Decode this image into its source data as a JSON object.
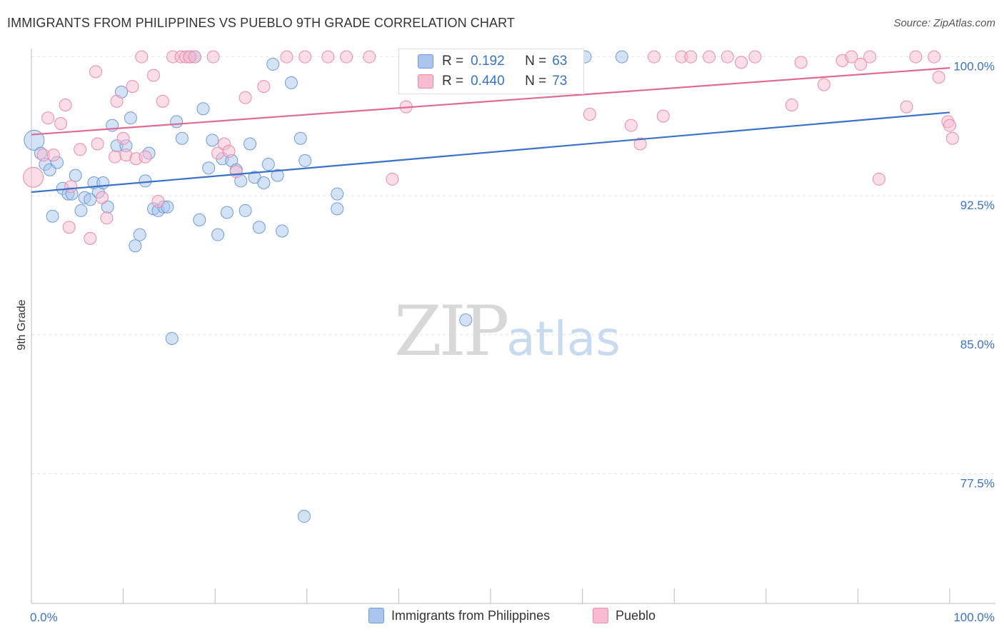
{
  "chart_data": {
    "type": "scatter",
    "title": "IMMIGRANTS FROM PHILIPPINES VS PUEBLO 9TH GRADE CORRELATION CHART",
    "source": "Source: ZipAtlas.com",
    "ylabel": "9th Grade",
    "xlabel": "",
    "xlim": [
      0,
      100
    ],
    "ylim": [
      70.5,
      100.6
    ],
    "x_tick_labels": [
      "0.0%",
      "100.0%"
    ],
    "y_ticks": [
      77.5,
      85.0,
      92.5,
      100.0
    ],
    "y_tick_labels": [
      "77.5%",
      "85.0%",
      "92.5%",
      "100.0%"
    ],
    "watermark": {
      "zip": "ZIP",
      "atlas": "atlas"
    },
    "legend_top": [
      {
        "r_label": "R =",
        "r_value": "0.192",
        "n_label": "N =",
        "n_value": "63"
      },
      {
        "r_label": "R =",
        "r_value": "0.440",
        "n_label": "N =",
        "n_value": "73"
      }
    ],
    "series": [
      {
        "name": "Immigrants from Philippines",
        "color": "#6f9bd9",
        "fill": "#aac6ee",
        "line_color": "#3a72c9",
        "trend": [
          [
            0,
            92.7
          ],
          [
            100,
            97.0
          ]
        ],
        "points": [
          [
            0.3,
            95.5
          ],
          [
            1,
            94.8
          ],
          [
            1.5,
            94.2
          ],
          [
            2,
            93.9
          ],
          [
            2.3,
            91.4
          ],
          [
            2.8,
            94.3
          ],
          [
            3.4,
            92.9
          ],
          [
            4,
            92.6
          ],
          [
            4.4,
            92.6
          ],
          [
            4.8,
            93.6
          ],
          [
            5.4,
            91.7
          ],
          [
            5.8,
            92.4
          ],
          [
            6.4,
            92.3
          ],
          [
            6.8,
            93.2
          ],
          [
            7.3,
            92.7
          ],
          [
            7.8,
            93.2
          ],
          [
            8.3,
            91.9
          ],
          [
            8.8,
            96.3
          ],
          [
            9.3,
            95.2
          ],
          [
            9.8,
            98.1
          ],
          [
            10.3,
            95.2
          ],
          [
            10.8,
            96.7
          ],
          [
            11.3,
            89.8
          ],
          [
            11.8,
            90.4
          ],
          [
            12.4,
            93.3
          ],
          [
            12.8,
            94.8
          ],
          [
            13.3,
            91.8
          ],
          [
            13.8,
            91.7
          ],
          [
            14.4,
            91.9
          ],
          [
            14.8,
            91.9
          ],
          [
            15.3,
            84.8
          ],
          [
            15.8,
            96.5
          ],
          [
            16.4,
            95.6
          ],
          [
            17.3,
            100.0
          ],
          [
            17.8,
            100.0
          ],
          [
            18.3,
            91.2
          ],
          [
            18.7,
            97.2
          ],
          [
            19.3,
            94.0
          ],
          [
            19.7,
            95.5
          ],
          [
            20.3,
            90.4
          ],
          [
            20.8,
            94.5
          ],
          [
            21.3,
            91.6
          ],
          [
            21.8,
            94.4
          ],
          [
            22.3,
            93.9
          ],
          [
            22.8,
            93.3
          ],
          [
            23.3,
            91.7
          ],
          [
            23.8,
            95.3
          ],
          [
            24.3,
            93.5
          ],
          [
            24.8,
            90.8
          ],
          [
            25.3,
            93.2
          ],
          [
            25.8,
            94.2
          ],
          [
            26.3,
            99.6
          ],
          [
            26.8,
            93.6
          ],
          [
            27.3,
            90.6
          ],
          [
            28.3,
            98.6
          ],
          [
            29.3,
            95.6
          ],
          [
            29.8,
            94.4
          ],
          [
            29.7,
            75.2
          ],
          [
            33.3,
            92.6
          ],
          [
            33.3,
            91.8
          ],
          [
            47.3,
            85.8
          ],
          [
            60.3,
            100.0
          ],
          [
            64.3,
            100.0
          ]
        ]
      },
      {
        "name": "Pueblo",
        "color": "#ec8aaa",
        "fill": "#f7bccf",
        "line_color": "#e06a94",
        "trend": [
          [
            0,
            95.8
          ],
          [
            100,
            99.4
          ]
        ],
        "points": [
          [
            0.2,
            93.5
          ],
          [
            1.3,
            94.7
          ],
          [
            1.8,
            96.7
          ],
          [
            2.4,
            94.7
          ],
          [
            3.2,
            96.4
          ],
          [
            3.7,
            97.4
          ],
          [
            4.1,
            90.8
          ],
          [
            4.3,
            93.0
          ],
          [
            5.3,
            95.0
          ],
          [
            6.4,
            90.2
          ],
          [
            7,
            99.2
          ],
          [
            7.2,
            95.3
          ],
          [
            7.7,
            92.4
          ],
          [
            8.2,
            91.3
          ],
          [
            9.1,
            94.6
          ],
          [
            9.3,
            97.6
          ],
          [
            10,
            95.6
          ],
          [
            10.3,
            94.7
          ],
          [
            11,
            98.4
          ],
          [
            11.4,
            94.5
          ],
          [
            12,
            100.0
          ],
          [
            12.4,
            94.6
          ],
          [
            13.3,
            99.0
          ],
          [
            13.8,
            92.2
          ],
          [
            14.3,
            97.6
          ],
          [
            15.4,
            100.0
          ],
          [
            16.3,
            100.0
          ],
          [
            16.8,
            100.0
          ],
          [
            17.2,
            100.0
          ],
          [
            17.8,
            100.0
          ],
          [
            19.8,
            100.0
          ],
          [
            20.3,
            94.8
          ],
          [
            21,
            95.3
          ],
          [
            21.5,
            94.9
          ],
          [
            22.3,
            93.8
          ],
          [
            23.3,
            97.8
          ],
          [
            25.3,
            98.4
          ],
          [
            27.8,
            100.0
          ],
          [
            29.8,
            100.0
          ],
          [
            32.3,
            100.0
          ],
          [
            34.3,
            100.0
          ],
          [
            36.8,
            100.0
          ],
          [
            39.3,
            93.4
          ],
          [
            40.8,
            97.3
          ],
          [
            42.3,
            100.0
          ],
          [
            46.3,
            100.0
          ],
          [
            48.3,
            100.0
          ],
          [
            60.8,
            96.9
          ],
          [
            65.3,
            96.3
          ],
          [
            66.3,
            95.3
          ],
          [
            67.8,
            100.0
          ],
          [
            68.8,
            96.8
          ],
          [
            70.8,
            100.0
          ],
          [
            71.8,
            100.0
          ],
          [
            73.8,
            100.0
          ],
          [
            75.8,
            100.0
          ],
          [
            77.3,
            99.7
          ],
          [
            78.8,
            100.0
          ],
          [
            82.8,
            97.4
          ],
          [
            83.8,
            99.7
          ],
          [
            86.3,
            98.5
          ],
          [
            88.3,
            99.8
          ],
          [
            89.3,
            100.0
          ],
          [
            90.3,
            99.6
          ],
          [
            91.3,
            100.0
          ],
          [
            92.3,
            93.4
          ],
          [
            95.3,
            97.3
          ],
          [
            96.3,
            100.0
          ],
          [
            98.3,
            100.0
          ],
          [
            98.8,
            98.9
          ],
          [
            99.8,
            96.5
          ],
          [
            100,
            96.3
          ],
          [
            100.3,
            95.6
          ]
        ]
      }
    ]
  }
}
